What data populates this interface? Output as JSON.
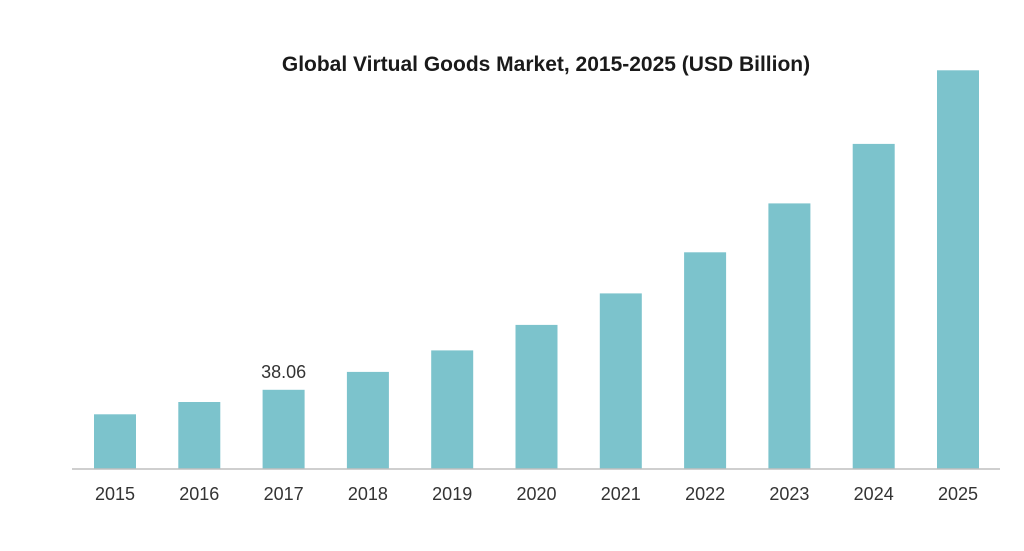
{
  "chart_data": {
    "type": "bar",
    "title": "Global Virtual Goods Market, 2015-2025 (USD Billion)",
    "xlabel": "",
    "ylabel": "",
    "categories": [
      "2015",
      "2016",
      "2017",
      "2018",
      "2019",
      "2020",
      "2021",
      "2022",
      "2023",
      "2024",
      "2025"
    ],
    "values": [
      26.3,
      32.2,
      38.06,
      46.7,
      57.0,
      69.3,
      84.4,
      104.2,
      127.7,
      156.3,
      191.7
    ],
    "data_labels": [
      {
        "category": "2017",
        "text": "38.06"
      }
    ],
    "ylim": [
      0,
      200
    ],
    "grid": false,
    "legend": "none",
    "colors": {
      "bar": "#7cc3cc",
      "axis": "#bfbfbf"
    }
  }
}
